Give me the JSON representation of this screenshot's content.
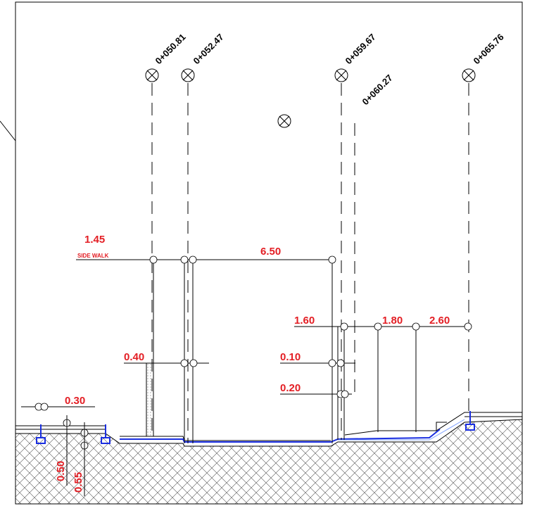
{
  "stations": [
    "0+050.81",
    "0+052.47",
    "0+059.67",
    "0+060.27",
    "0+065.76"
  ],
  "side_walk": {
    "width": "1.45",
    "label": "SIDE WALK"
  },
  "dimensions": [
    "6.50",
    "0.40",
    "1.60",
    "1.80",
    "2.60",
    "0.10",
    "0.20",
    "0.30",
    "0.50",
    "0.55"
  ]
}
